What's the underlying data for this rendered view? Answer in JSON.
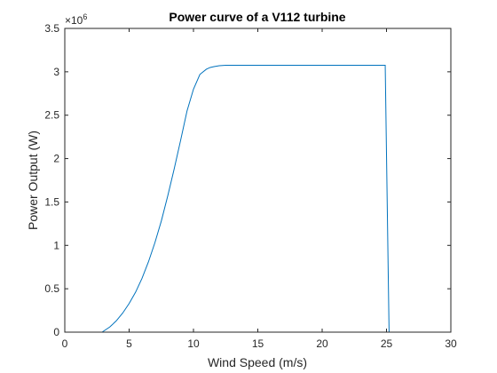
{
  "chart_data": {
    "type": "line",
    "title": "Power curve of a V112 turbine",
    "xlabel": "Wind Speed (m/s)",
    "ylabel": "Power Output (W)",
    "y_exponent_label": "×10",
    "y_exponent_power": "6",
    "xlim": [
      0,
      30
    ],
    "ylim": [
      0,
      3.5
    ],
    "y_multiplier": 1000000,
    "x_ticks": [
      0,
      5,
      10,
      15,
      20,
      25,
      30
    ],
    "y_ticks": [
      0,
      0.5,
      1,
      1.5,
      2,
      2.5,
      3,
      3.5
    ],
    "grid": false,
    "series": [
      {
        "color": "#0072BD",
        "x": [
          0,
          2.9,
          3,
          3.5,
          4,
          4.5,
          5,
          5.5,
          6,
          6.5,
          7,
          7.5,
          8,
          8.5,
          9,
          9.5,
          10,
          10.5,
          11,
          11.3,
          11.6,
          12,
          12.5,
          13,
          14,
          15,
          20,
          24.9,
          25.2,
          26,
          30
        ],
        "y": [
          0,
          0,
          0.01,
          0.06,
          0.13,
          0.22,
          0.33,
          0.46,
          0.62,
          0.81,
          1.03,
          1.28,
          1.57,
          1.88,
          2.21,
          2.55,
          2.8,
          2.97,
          3.03,
          3.05,
          3.06,
          3.07,
          3.075,
          3.075,
          3.075,
          3.075,
          3.075,
          3.075,
          0,
          0,
          0
        ]
      }
    ]
  }
}
